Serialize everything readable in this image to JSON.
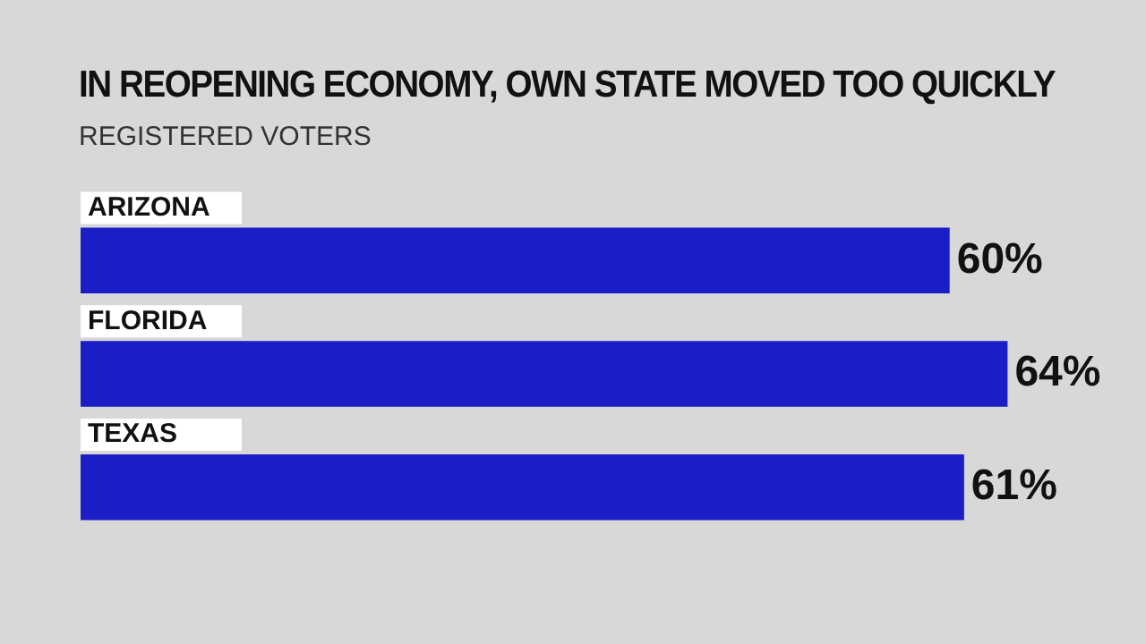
{
  "chart_data": {
    "type": "bar",
    "orientation": "horizontal",
    "title": "IN REOPENING ECONOMY, OWN STATE MOVED TOO QUICKLY",
    "subtitle": "REGISTERED VOTERS",
    "categories": [
      "ARIZONA",
      "FLORIDA",
      "TEXAS"
    ],
    "values": [
      60,
      64,
      61
    ],
    "color": "#1a1ec4",
    "value_labels": [
      "60%",
      "64%",
      "61%"
    ],
    "tick_labels": false
  }
}
